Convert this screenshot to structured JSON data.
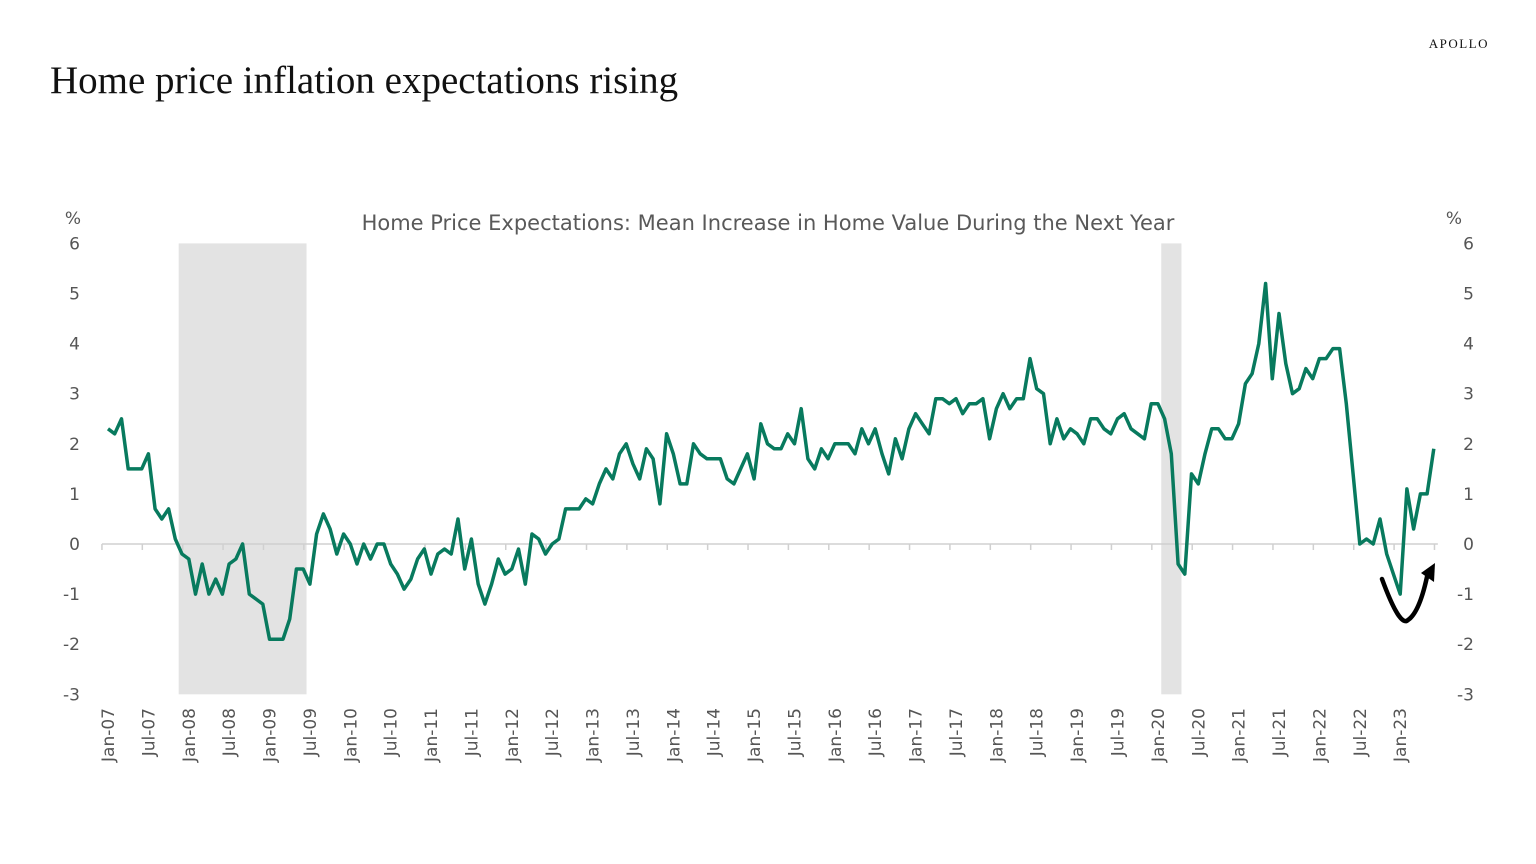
{
  "header": {
    "title": "Home price inflation expectations rising",
    "brand": "APOLLO"
  },
  "chart_data": {
    "type": "line",
    "title": "Home Price Expectations: Mean Increase in Home Value During the Next Year",
    "ylabel_left": "%",
    "ylabel_right": "%",
    "ylim": [
      -3,
      6
    ],
    "yticks": [
      6,
      5,
      4,
      3,
      2,
      1,
      0,
      -1,
      -2,
      -3
    ],
    "grid": false,
    "x_start": "Jan-07",
    "x_frequency": "monthly",
    "xtick_labels": [
      "Jan-07",
      "Jul-07",
      "Jan-08",
      "Jul-08",
      "Jan-09",
      "Jul-09",
      "Jan-10",
      "Jul-10",
      "Jan-11",
      "Jul-11",
      "Jan-12",
      "Jul-12",
      "Jan-13",
      "Jul-13",
      "Jan-14",
      "Jul-14",
      "Jan-15",
      "Jul-15",
      "Jan-16",
      "Jul-16",
      "Jan-17",
      "Jul-17",
      "Jan-18",
      "Jul-18",
      "Jan-19",
      "Jul-19",
      "Jan-20",
      "Jul-20",
      "Jan-21",
      "Jul-21",
      "Jan-22",
      "Jul-22",
      "Jan-23"
    ],
    "recessions": [
      {
        "start": "Dec-07",
        "end": "Jun-09"
      },
      {
        "start": "Feb-20",
        "end": "Apr-20"
      }
    ],
    "series": [
      {
        "color": "#087A5E",
        "values": [
          2.3,
          2.2,
          2.5,
          1.5,
          1.5,
          1.5,
          1.8,
          0.7,
          0.5,
          0.7,
          0.1,
          -0.2,
          -0.3,
          -1.0,
          -0.4,
          -1.0,
          -0.7,
          -1.0,
          -0.4,
          -0.3,
          0,
          -1.0,
          -1.1,
          -1.2,
          -1.9,
          -1.9,
          -1.9,
          -1.5,
          -0.5,
          -0.5,
          -0.8,
          0.2,
          0.6,
          0.3,
          -0.2,
          0.2,
          0,
          -0.4,
          0,
          -0.3,
          0,
          0,
          -0.4,
          -0.6,
          -0.9,
          -0.7,
          -0.3,
          -0.1,
          -0.6,
          -0.2,
          -0.1,
          -0.2,
          0.5,
          -0.5,
          0.1,
          -0.8,
          -1.2,
          -0.8,
          -0.3,
          -0.6,
          -0.5,
          -0.1,
          -0.8,
          0.2,
          0.1,
          -0.2,
          0,
          0.1,
          0.7,
          0.7,
          0.7,
          0.9,
          0.8,
          1.2,
          1.5,
          1.3,
          1.8,
          2.0,
          1.6,
          1.3,
          1.9,
          1.7,
          0.8,
          2.2,
          1.8,
          1.2,
          1.2,
          2.0,
          1.8,
          1.7,
          1.7,
          1.7,
          1.3,
          1.2,
          1.5,
          1.8,
          1.3,
          2.4,
          2.0,
          1.9,
          1.9,
          2.2,
          2.0,
          2.7,
          1.7,
          1.5,
          1.9,
          1.7,
          2.0,
          2.0,
          2.0,
          1.8,
          2.3,
          2.0,
          2.3,
          1.8,
          1.4,
          2.1,
          1.7,
          2.3,
          2.6,
          2.4,
          2.2,
          2.9,
          2.9,
          2.8,
          2.9,
          2.6,
          2.8,
          2.8,
          2.9,
          2.1,
          2.7,
          3.0,
          2.7,
          2.9,
          2.9,
          3.7,
          3.1,
          3.0,
          2.0,
          2.5,
          2.1,
          2.3,
          2.2,
          2.0,
          2.5,
          2.5,
          2.3,
          2.2,
          2.5,
          2.6,
          2.3,
          2.2,
          2.1,
          2.8,
          2.8,
          2.5,
          1.8,
          -0.4,
          -0.6,
          1.4,
          1.2,
          1.8,
          2.3,
          2.3,
          2.1,
          2.1,
          2.4,
          3.2,
          3.4,
          4.0,
          5.2,
          3.3,
          4.6,
          3.6,
          3.0,
          3.1,
          3.5,
          3.3,
          3.7,
          3.7,
          3.9,
          3.9,
          2.8,
          1.4,
          0,
          0.1,
          0,
          0.5,
          -0.2,
          -0.6,
          -1.0,
          1.1,
          0.3,
          1.0,
          1.0,
          1.9
        ]
      }
    ],
    "annotation": "curved-up-arrow"
  }
}
